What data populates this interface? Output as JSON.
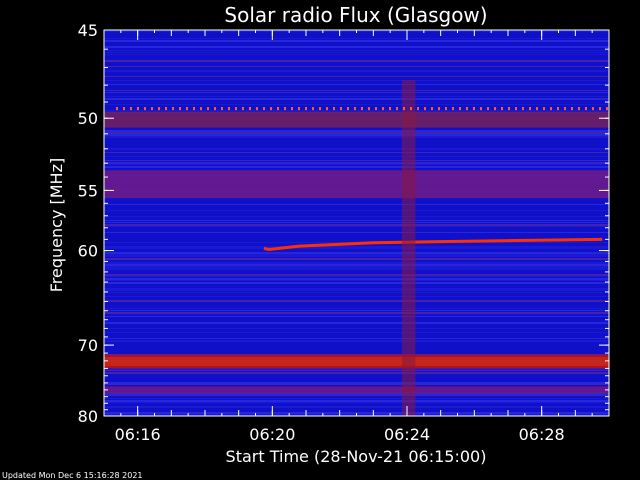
{
  "chart_data": {
    "type": "heatmap",
    "title": "Solar radio Flux (Glasgow)",
    "xlabel": "Start Time (28-Nov-21 06:15:00)",
    "ylabel": "Frequency [MHz]",
    "x_ticks": [
      "06:16",
      "06:20",
      "06:24",
      "06:28"
    ],
    "x_tick_minutes": [
      1,
      5,
      9,
      13
    ],
    "xlim_minutes": [
      0,
      15
    ],
    "y_ticks": [
      45,
      50,
      55,
      60,
      70,
      80
    ],
    "ylim": [
      45,
      80
    ],
    "y_scale": "reciprocal",
    "colormap": [
      "#1010c8",
      "#3030e8",
      "#6020a0",
      "#b01020",
      "#ff2000",
      "#ffff80",
      "#ffffff"
    ],
    "features": [
      {
        "kind": "band",
        "f_start": 71.9,
        "f_end": 72.3,
        "color": "#ffffff"
      },
      {
        "kind": "band",
        "f_start": 71.5,
        "f_end": 72.7,
        "color": "#ffff80"
      },
      {
        "kind": "band",
        "f_start": 71.2,
        "f_end": 73.0,
        "color": "#c01010"
      },
      {
        "kind": "band",
        "f_start": 53.5,
        "f_end": 55.6,
        "color": "#6a1a8a"
      },
      {
        "kind": "band",
        "f_start": 49.6,
        "f_end": 50.6,
        "color": "#702060"
      },
      {
        "kind": "band",
        "f_start": 75.5,
        "f_end": 76.5,
        "color": "#6a1a8a"
      },
      {
        "kind": "drift",
        "points": [
          [
            4.75,
            59.8
          ],
          [
            4.9,
            59.9
          ],
          [
            5.8,
            59.6
          ],
          [
            8,
            59.3
          ],
          [
            10,
            59.2
          ],
          [
            14.8,
            59.0
          ]
        ],
        "color": "#ff3000"
      },
      {
        "kind": "column",
        "t_start": 8.85,
        "t_end": 9.25,
        "color": "#8a1840"
      }
    ]
  },
  "footer": "Updated Mon Dec  6 15:16:28 2021"
}
